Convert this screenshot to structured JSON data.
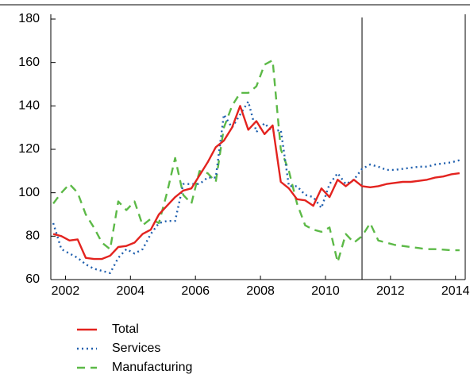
{
  "chart_data": {
    "type": "line",
    "x": [
      2002.125,
      2002.375,
      2002.625,
      2002.875,
      2003.125,
      2003.375,
      2003.625,
      2003.875,
      2004.125,
      2004.375,
      2004.625,
      2004.875,
      2005.125,
      2005.375,
      2005.625,
      2005.875,
      2006.125,
      2006.375,
      2006.625,
      2006.875,
      2007.125,
      2007.375,
      2007.625,
      2007.875,
      2008.125,
      2008.375,
      2008.625,
      2008.875,
      2009.125,
      2009.375,
      2009.625,
      2009.875,
      2010.125,
      2010.375,
      2010.625,
      2010.875,
      2011.125,
      2011.375,
      2011.625,
      2011.875,
      2012.125,
      2012.375,
      2012.625,
      2012.875,
      2013.125,
      2013.375,
      2013.625,
      2013.875,
      2014.125,
      2014.375,
      2014.625
    ],
    "series": [
      {
        "name": "Total",
        "color": "#e3231f",
        "dash": "none",
        "values": [
          81,
          80,
          78,
          78.5,
          70,
          69.5,
          69.5,
          71,
          75,
          75.5,
          77,
          81,
          83,
          90,
          94,
          98,
          101,
          102,
          108,
          114,
          121,
          124,
          130,
          140,
          129,
          133,
          127,
          131,
          105,
          102,
          97,
          96.5,
          94,
          102,
          98,
          106,
          103,
          106,
          103,
          102.5,
          103,
          104,
          104.5,
          105,
          105,
          105.5,
          106,
          107,
          107.5,
          108.5,
          109
        ]
      },
      {
        "name": "Services",
        "color": "#1f5fae",
        "dash": "2,4",
        "values": [
          86,
          74,
          72,
          70,
          67,
          65,
          64,
          63,
          70,
          74,
          72,
          74,
          81,
          86,
          87,
          87,
          104,
          104,
          104,
          107,
          107,
          136,
          130,
          136,
          142,
          128,
          132,
          128,
          129,
          103,
          103,
          99,
          98,
          93,
          104,
          109,
          104,
          106,
          111,
          113,
          112,
          110.5,
          110.5,
          111,
          111.5,
          112,
          112,
          113,
          113.5,
          114,
          115
        ]
      },
      {
        "name": "Manufacturing",
        "color": "#5cb947",
        "dash": "10,7",
        "values": [
          95,
          100,
          104,
          100,
          90,
          84,
          77,
          74,
          96,
          92,
          96,
          85,
          88,
          86,
          100,
          116,
          99,
          95,
          110,
          109,
          105,
          130,
          140,
          146,
          146,
          149,
          159,
          161,
          120,
          110,
          95,
          85,
          83,
          82,
          84,
          68,
          81,
          77,
          80,
          86,
          78,
          77,
          76,
          75.5,
          75,
          74.5,
          74,
          74,
          73.8,
          73.5,
          73.5
        ]
      }
    ],
    "xlim": [
      2002.05,
      2014.8
    ],
    "xticks": [
      {
        "value": 2002.5,
        "label": "2002"
      },
      {
        "value": 2004.5,
        "label": "2004"
      },
      {
        "value": 2006.5,
        "label": "2006"
      },
      {
        "value": 2008.5,
        "label": "2008"
      },
      {
        "value": 2010.5,
        "label": "2010"
      },
      {
        "value": 2012.5,
        "label": "2012"
      },
      {
        "value": 2014.5,
        "label": "2014"
      }
    ],
    "ylim": [
      60,
      180
    ],
    "yticks": [
      60,
      80,
      100,
      120,
      140,
      160,
      180
    ],
    "vline": 2011.625
  }
}
